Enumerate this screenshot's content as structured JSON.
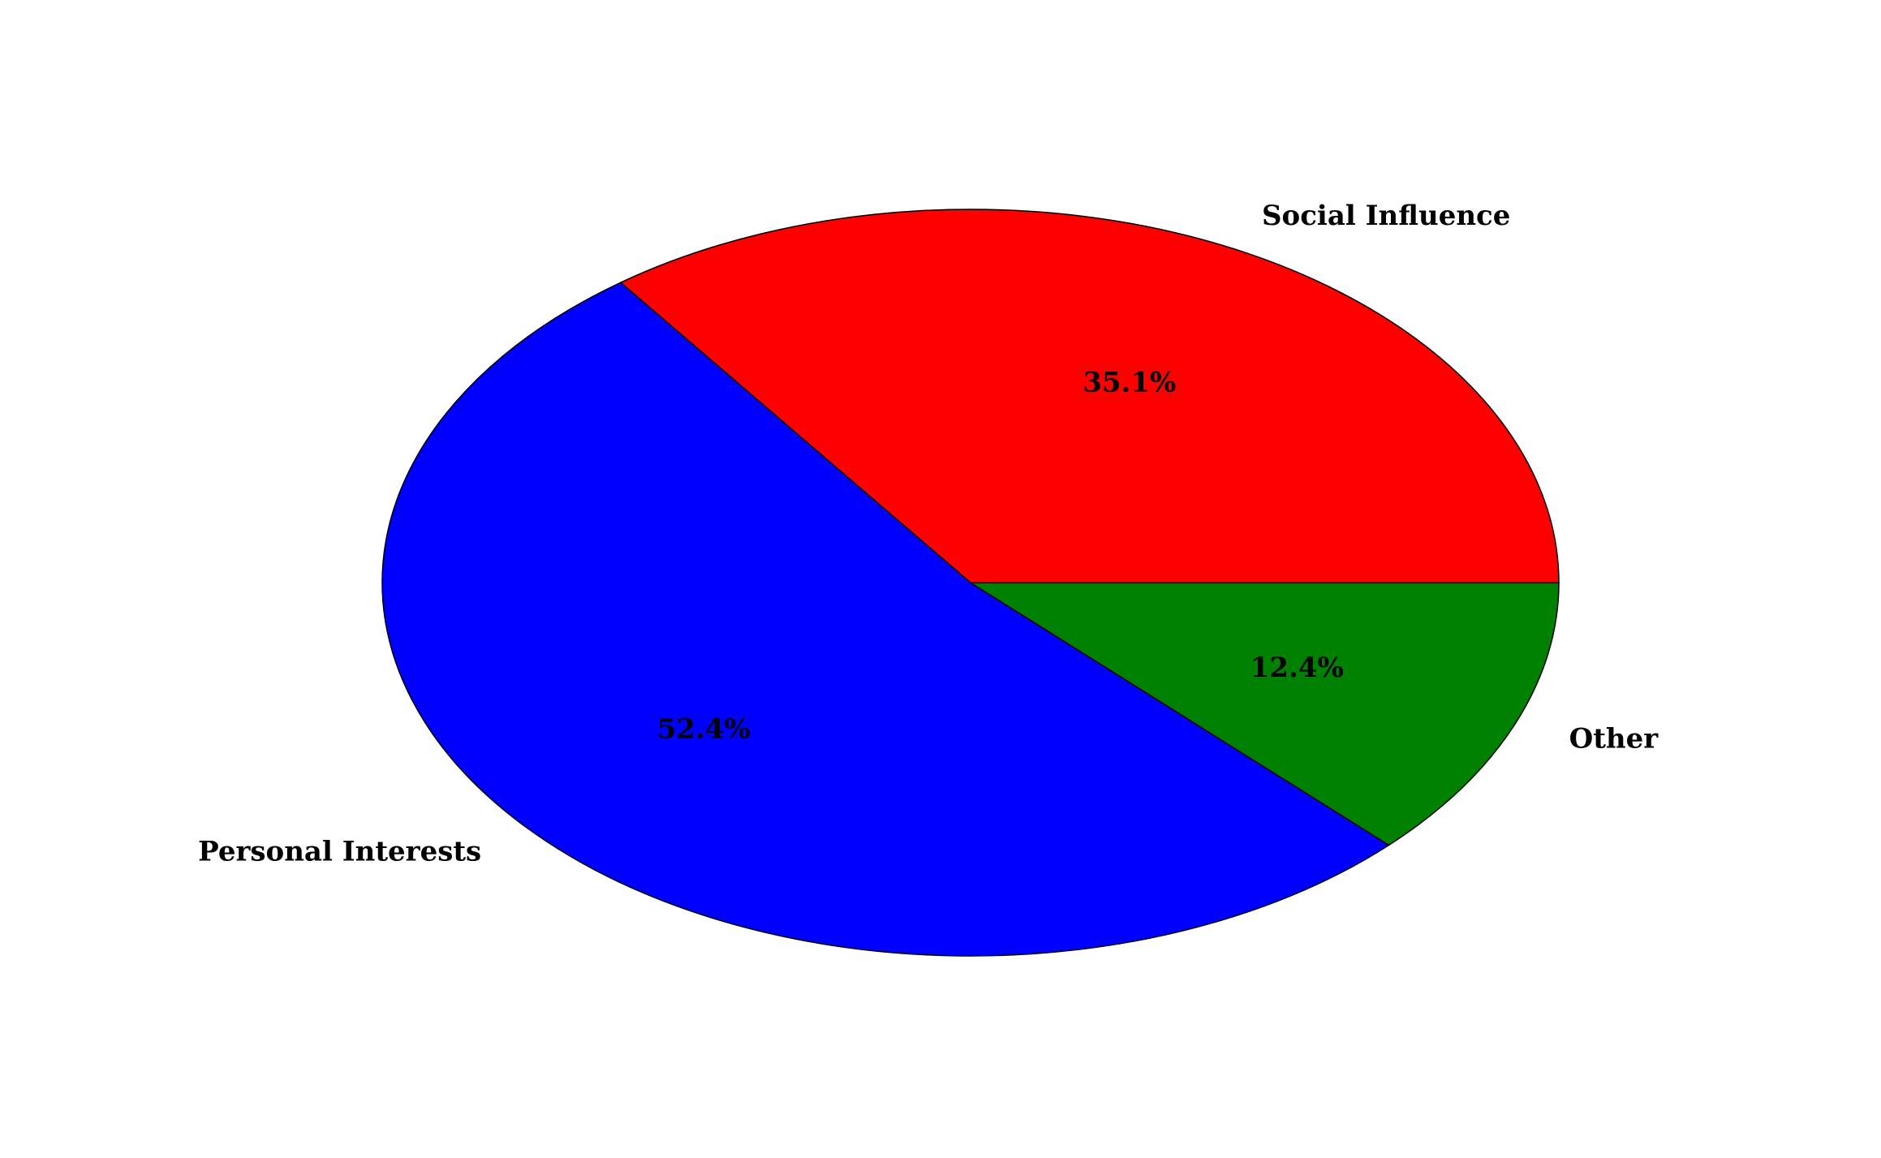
{
  "chart_data": {
    "type": "pie",
    "title": "",
    "start_angle_deg": 0,
    "direction": "counterclockwise",
    "slices": [
      {
        "label": "Social Influence",
        "value": 35.1,
        "pct_label": "35.1%",
        "color": "#ff0000"
      },
      {
        "label": "Personal Interests",
        "value": 52.4,
        "pct_label": "52.4%",
        "color": "#0000ff"
      },
      {
        "label": "Other",
        "value": 12.4,
        "pct_label": "12.4%",
        "color": "#008000"
      }
    ],
    "edge_color": "#000000"
  }
}
